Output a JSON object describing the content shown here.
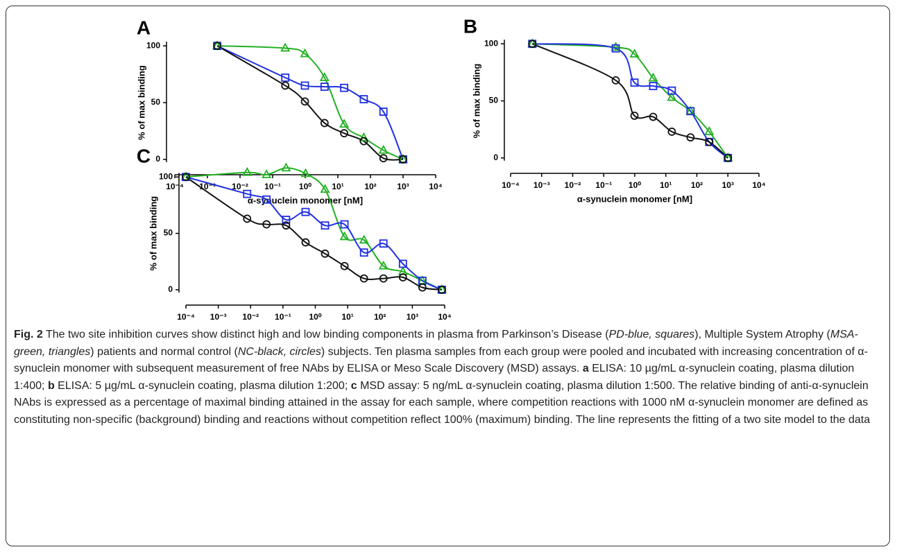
{
  "chart_data": [
    {
      "type": "scatter",
      "panel": "A",
      "xlabel": "α-synuclein monomer [nM]",
      "ylabel": "% of max binding",
      "xscale": "log",
      "xlim": [
        0.0001,
        10000
      ],
      "ylim": [
        -5,
        105
      ],
      "yticks": [
        0,
        50,
        100
      ],
      "xticks": [
        {
          "value": 0.0001,
          "label": "10⁻⁴"
        },
        {
          "value": 0.001,
          "label": "10⁻³"
        },
        {
          "value": 0.01,
          "label": "10⁻²"
        },
        {
          "value": 0.1,
          "label": "10⁻¹"
        },
        {
          "value": 1,
          "label": "10⁰"
        },
        {
          "value": 10,
          "label": "10¹"
        },
        {
          "value": 100,
          "label": "10²"
        },
        {
          "value": 1000,
          "label": "10³"
        },
        {
          "value": 10000,
          "label": "10⁴"
        }
      ],
      "x": [
        0.002,
        0.244,
        0.977,
        3.91,
        15.6,
        62.5,
        250,
        1000
      ],
      "series": [
        {
          "color": "#22b022",
          "marker": "triangle",
          "values": [
            100,
            98,
            93,
            72,
            31,
            19,
            8,
            0
          ]
        },
        {
          "color": "#1f2fe0",
          "marker": "square",
          "values": [
            100,
            72,
            65,
            64,
            63,
            53,
            42,
            0
          ]
        },
        {
          "color": "#111111",
          "marker": "circle",
          "values": [
            100,
            65,
            51,
            32,
            23,
            16,
            1,
            0
          ]
        }
      ]
    },
    {
      "type": "scatter",
      "panel": "B",
      "xlabel": "α-synuclein monomer [nM]",
      "ylabel": "% of max binding",
      "xscale": "log",
      "xlim": [
        0.0001,
        10000
      ],
      "ylim": [
        -5,
        105
      ],
      "yticks": [
        0,
        50,
        100
      ],
      "xticks": [
        {
          "value": 0.0001,
          "label": "10⁻⁴"
        },
        {
          "value": 0.001,
          "label": "10⁻³"
        },
        {
          "value": 0.01,
          "label": "10⁻²"
        },
        {
          "value": 0.1,
          "label": "10⁻¹"
        },
        {
          "value": 1,
          "label": "10⁰"
        },
        {
          "value": 10,
          "label": "10¹"
        },
        {
          "value": 100,
          "label": "10²"
        },
        {
          "value": 1000,
          "label": "10³"
        },
        {
          "value": 10000,
          "label": "10⁴"
        }
      ],
      "x": [
        0.0005,
        0.244,
        0.977,
        3.91,
        15.6,
        62.5,
        250,
        1000
      ],
      "series": [
        {
          "color": "#22b022",
          "marker": "triangle",
          "values": [
            100,
            97,
            91,
            70,
            53,
            41,
            23,
            0
          ]
        },
        {
          "color": "#1f2fe0",
          "marker": "square",
          "values": [
            100,
            96,
            66,
            63,
            59,
            41,
            14,
            0
          ]
        },
        {
          "color": "#111111",
          "marker": "circle",
          "values": [
            100,
            68,
            37,
            36,
            23,
            18,
            14,
            0
          ]
        }
      ]
    },
    {
      "type": "scatter",
      "panel": "C",
      "xlabel": "α-synuclein monomer [nM]",
      "ylabel": "% of max binding",
      "xscale": "log",
      "xlim": [
        0.0001,
        10000
      ],
      "ylim": [
        -5,
        110
      ],
      "yticks": [
        0,
        50,
        100
      ],
      "xticks": [
        {
          "value": 0.0001,
          "label": "10⁻⁴"
        },
        {
          "value": 0.001,
          "label": "10⁻³"
        },
        {
          "value": 0.01,
          "label": "10⁻²"
        },
        {
          "value": 0.1,
          "label": "10⁻¹"
        },
        {
          "value": 1,
          "label": "10⁰"
        },
        {
          "value": 10,
          "label": "10¹"
        },
        {
          "value": 100,
          "label": "10²"
        },
        {
          "value": 1000,
          "label": "10³"
        },
        {
          "value": 10000,
          "label": "10⁴"
        }
      ],
      "x": [
        0.0001,
        0.0078,
        0.031,
        0.125,
        0.5,
        2,
        8,
        32,
        128,
        512,
        2048,
        8192
      ],
      "series": [
        {
          "color": "#22b022",
          "marker": "triangle",
          "values": [
            100,
            104,
            102,
            108,
            103,
            89,
            47,
            44,
            21,
            16,
            8,
            0
          ]
        },
        {
          "color": "#1f2fe0",
          "marker": "square",
          "values": [
            100,
            85,
            80,
            62,
            69,
            57,
            58,
            33,
            41,
            23,
            8,
            0
          ]
        },
        {
          "color": "#111111",
          "marker": "circle",
          "values": [
            100,
            63,
            58,
            57,
            42,
            32,
            21,
            10,
            10,
            11,
            2,
            0
          ]
        }
      ]
    }
  ],
  "caption": [
    {
      "text": "Fig. 2",
      "style": "bold"
    },
    {
      "text": " The two site inhibition curves show distinct high and low binding components in plasma from Parkinson’s Disease ("
    },
    {
      "text": "PD-blue, squares",
      "style": "italic"
    },
    {
      "text": "), Multiple System Atrophy ("
    },
    {
      "text": "MSA-green, triangles",
      "style": "italic"
    },
    {
      "text": ") patients and normal control ("
    },
    {
      "text": "NC-black, circles",
      "style": "italic"
    },
    {
      "text": ") subjects. Ten plasma samples from each group were pooled and incubated with increasing concentration of α-synuclein monomer with subsequent measurement of free NAbs by ELISA or Meso Scale Discovery (MSD) assays. "
    },
    {
      "text": "a",
      "style": "bold"
    },
    {
      "text": " ELISA: 10 µg/mL α-synuclein coating, plasma dilution 1:400; "
    },
    {
      "text": "b",
      "style": "bold"
    },
    {
      "text": " ELISA: 5 µg/mL α-synuclein coating, plasma dilution 1:200; "
    },
    {
      "text": "c",
      "style": "bold"
    },
    {
      "text": " MSD assay: 5 ng/mL α-synuclein coating, plasma dilution 1:500. The relative binding of anti-α-synuclein NAbs is expressed as a percentage of maximal binding attained in the assay for each sample, where competition reactions with 1000 nM α-synuclein monomer are defined as constituting non-specific (background) binding and reactions without competition reflect 100% (maximum) binding. The line represents the fitting of a two site model to the data"
    }
  ]
}
